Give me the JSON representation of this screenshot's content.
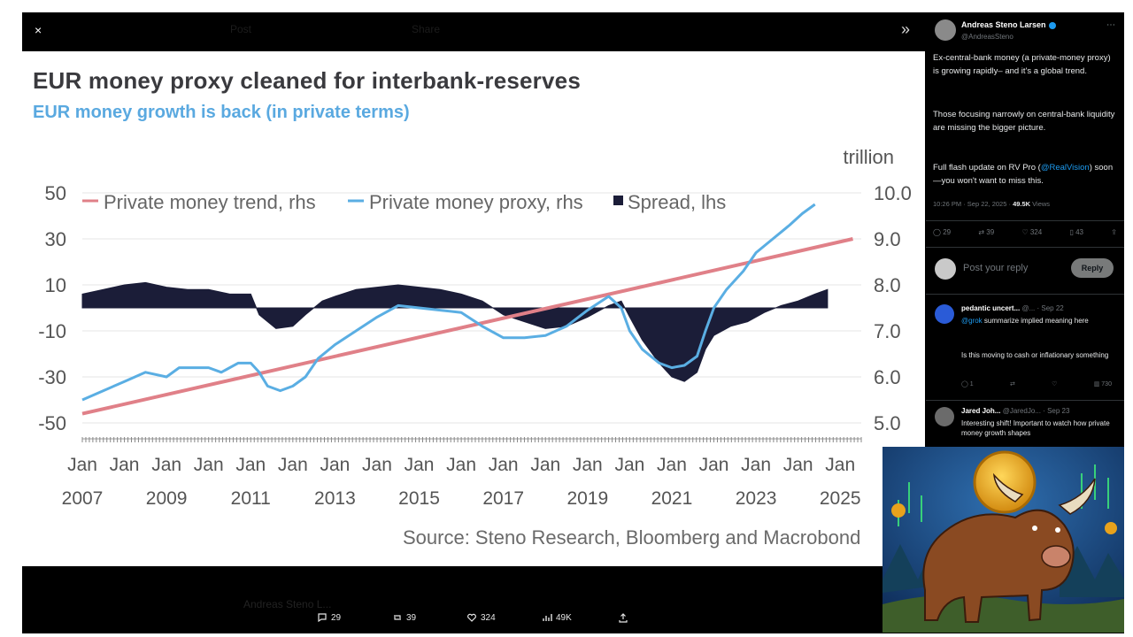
{
  "viewer": {
    "close_glyph": "×",
    "next_glyph": "»",
    "dim_labels": [
      "Post",
      "Share"
    ]
  },
  "chart_data": {
    "type": "line",
    "title": "EUR money proxy cleaned for interbank-reserves",
    "subtitle": "EUR money growth is back (in private terms)",
    "unit_right": "trillion",
    "source": "Source: Steno Research, Bloomberg and Macrobond",
    "left_axis": {
      "ticks": [
        50,
        30,
        10,
        -10,
        -30,
        -50
      ],
      "range": [
        -50,
        50
      ]
    },
    "right_axis": {
      "ticks": [
        "10.0",
        "9.0",
        "8.0",
        "7.0",
        "6.0",
        "5.0"
      ],
      "range": [
        5.0,
        10.0
      ]
    },
    "x_range": [
      2007.0,
      2025.5
    ],
    "x_ticks": [
      {
        "x": 2007,
        "month": "Jan",
        "year": "2007"
      },
      {
        "x": 2008,
        "month": "Jan",
        "year": ""
      },
      {
        "x": 2009,
        "month": "Jan",
        "year": "2009"
      },
      {
        "x": 2010,
        "month": "Jan",
        "year": ""
      },
      {
        "x": 2011,
        "month": "Jan",
        "year": "2011"
      },
      {
        "x": 2012,
        "month": "Jan",
        "year": ""
      },
      {
        "x": 2013,
        "month": "Jan",
        "year": "2013"
      },
      {
        "x": 2014,
        "month": "Jan",
        "year": ""
      },
      {
        "x": 2015,
        "month": "Jan",
        "year": "2015"
      },
      {
        "x": 2016,
        "month": "Jan",
        "year": ""
      },
      {
        "x": 2017,
        "month": "Jan",
        "year": "2017"
      },
      {
        "x": 2018,
        "month": "Jan",
        "year": ""
      },
      {
        "x": 2019,
        "month": "Jan",
        "year": "2019"
      },
      {
        "x": 2020,
        "month": "Jan",
        "year": ""
      },
      {
        "x": 2021,
        "month": "Jan",
        "year": "2021"
      },
      {
        "x": 2022,
        "month": "Jan",
        "year": ""
      },
      {
        "x": 2023,
        "month": "Jan",
        "year": "2023"
      },
      {
        "x": 2024,
        "month": "Jan",
        "year": ""
      },
      {
        "x": 2025,
        "month": "Jan",
        "year": "2025"
      }
    ],
    "grid": true,
    "legend_position": "top",
    "series": [
      {
        "name": "Private money trend, rhs",
        "axis": "right",
        "kind": "line",
        "color": "#e08088",
        "points": [
          [
            2007.0,
            5.2
          ],
          [
            2025.3,
            9.0
          ]
        ]
      },
      {
        "name": "Private money proxy, rhs",
        "axis": "right",
        "kind": "line",
        "color": "#5aaee3",
        "points": [
          [
            2007.0,
            5.5
          ],
          [
            2007.5,
            5.7
          ],
          [
            2008.0,
            5.9
          ],
          [
            2008.5,
            6.1
          ],
          [
            2009.0,
            6.0
          ],
          [
            2009.3,
            6.2
          ],
          [
            2009.7,
            6.2
          ],
          [
            2010.0,
            6.2
          ],
          [
            2010.3,
            6.1
          ],
          [
            2010.7,
            6.3
          ],
          [
            2011.0,
            6.3
          ],
          [
            2011.2,
            6.1
          ],
          [
            2011.4,
            5.8
          ],
          [
            2011.7,
            5.7
          ],
          [
            2012.0,
            5.8
          ],
          [
            2012.3,
            6.0
          ],
          [
            2012.6,
            6.4
          ],
          [
            2013.0,
            6.7
          ],
          [
            2013.5,
            7.0
          ],
          [
            2014.0,
            7.3
          ],
          [
            2014.5,
            7.55
          ],
          [
            2015.0,
            7.5
          ],
          [
            2015.5,
            7.45
          ],
          [
            2016.0,
            7.4
          ],
          [
            2016.5,
            7.1
          ],
          [
            2017.0,
            6.85
          ],
          [
            2017.5,
            6.85
          ],
          [
            2018.0,
            6.9
          ],
          [
            2018.5,
            7.1
          ],
          [
            2019.0,
            7.45
          ],
          [
            2019.5,
            7.75
          ],
          [
            2019.8,
            7.5
          ],
          [
            2020.0,
            7.0
          ],
          [
            2020.3,
            6.6
          ],
          [
            2020.7,
            6.3
          ],
          [
            2021.0,
            6.2
          ],
          [
            2021.3,
            6.25
          ],
          [
            2021.6,
            6.45
          ],
          [
            2021.8,
            7.0
          ],
          [
            2022.0,
            7.5
          ],
          [
            2022.3,
            7.9
          ],
          [
            2022.7,
            8.3
          ],
          [
            2023.0,
            8.7
          ],
          [
            2023.4,
            9.0
          ],
          [
            2023.8,
            9.3
          ],
          [
            2024.1,
            9.55
          ],
          [
            2024.4,
            9.75
          ]
        ]
      },
      {
        "name": "Spread, lhs",
        "axis": "left",
        "kind": "area",
        "color": "#1b1d38",
        "points": [
          [
            2007.0,
            6
          ],
          [
            2007.5,
            8
          ],
          [
            2008.0,
            10
          ],
          [
            2008.5,
            11
          ],
          [
            2009.0,
            9
          ],
          [
            2009.5,
            8
          ],
          [
            2010.0,
            8
          ],
          [
            2010.5,
            6
          ],
          [
            2011.0,
            6
          ],
          [
            2011.2,
            -3
          ],
          [
            2011.6,
            -9
          ],
          [
            2012.0,
            -8
          ],
          [
            2012.3,
            -3
          ],
          [
            2012.7,
            3
          ],
          [
            2013.0,
            5
          ],
          [
            2013.5,
            8
          ],
          [
            2014.0,
            9
          ],
          [
            2014.5,
            10
          ],
          [
            2015.0,
            9
          ],
          [
            2015.5,
            8
          ],
          [
            2016.0,
            6
          ],
          [
            2016.5,
            3
          ],
          [
            2017.0,
            -3
          ],
          [
            2017.5,
            -6
          ],
          [
            2018.0,
            -9
          ],
          [
            2018.5,
            -8
          ],
          [
            2019.0,
            -4
          ],
          [
            2019.5,
            1
          ],
          [
            2019.8,
            3
          ],
          [
            2020.0,
            -4
          ],
          [
            2020.3,
            -14
          ],
          [
            2020.7,
            -24
          ],
          [
            2021.0,
            -30
          ],
          [
            2021.3,
            -32
          ],
          [
            2021.6,
            -28
          ],
          [
            2021.8,
            -18
          ],
          [
            2022.0,
            -12
          ],
          [
            2022.4,
            -8
          ],
          [
            2022.8,
            -6
          ],
          [
            2023.2,
            -2
          ],
          [
            2023.6,
            1
          ],
          [
            2024.0,
            3
          ],
          [
            2024.4,
            6
          ],
          [
            2024.7,
            8
          ]
        ]
      }
    ]
  },
  "player": {
    "actions": [
      {
        "name": "comment",
        "count": "29"
      },
      {
        "name": "repost",
        "count": "39"
      },
      {
        "name": "like",
        "count": "324"
      },
      {
        "name": "views",
        "count": "49K"
      },
      {
        "name": "share",
        "count": ""
      }
    ],
    "dim_author": "Andreas Steno L..."
  },
  "post": {
    "author_name": "Andreas Steno Larsen",
    "author_handle": "@AndreasSteno",
    "text_1": "Ex-central-bank money (a private-money proxy) is growing rapidly– and it's a global trend.",
    "text_2": "Those focusing narrowly on central-bank liquidity are missing the bigger picture.",
    "text_3_prefix": "Full flash update on RV Pro (",
    "text_3_link": "@RealVision",
    "text_3_suffix": ") soon—you won't want to miss this.",
    "timestamp": "10:26 PM · Sep 22, 2025 · ",
    "views_count": "49.5K",
    "views_label": " Views",
    "actions": [
      {
        "icon": "reply-icon",
        "count": "29"
      },
      {
        "icon": "repost-icon",
        "count": "39"
      },
      {
        "icon": "like-icon",
        "count": "324"
      },
      {
        "icon": "bookmark-icon",
        "count": "43"
      },
      {
        "icon": "share-icon",
        "count": ""
      }
    ]
  },
  "reply_box": {
    "placeholder": "Post your reply",
    "button_label": "Reply"
  },
  "comments": [
    {
      "name": "pedantic uncert...",
      "handle": "@...",
      "date": "· Sep 22",
      "mention": "@grok",
      "body_1": "summarize implied meaning here",
      "body_2": "Is this moving to cash or inflationary something",
      "acts": [
        "1",
        "",
        "",
        "730"
      ],
      "avatar_color": "#2a5bd7"
    },
    {
      "name": "Jared Joh...",
      "handle": "@JaredJo...",
      "date": "· Sep 23",
      "mention": "",
      "body_1": "Interesting shift! Important to watch how private money growth shapes",
      "body_2": "",
      "acts": [],
      "avatar_color": "#6b6b6b"
    }
  ],
  "colors": {
    "background": "#000000",
    "title": "#3a3a3e",
    "subtitle": "#5aa9e0",
    "accent_blue": "#1d9bf0"
  }
}
